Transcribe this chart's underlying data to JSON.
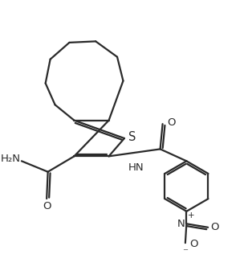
{
  "bg_color": "#ffffff",
  "line_color": "#2a2a2a",
  "line_width": 1.6,
  "font_size": 9.5,
  "figsize": [
    3.09,
    3.47
  ],
  "dpi": 100,
  "xlim": [
    0,
    10
  ],
  "ylim": [
    0,
    11.5
  ]
}
